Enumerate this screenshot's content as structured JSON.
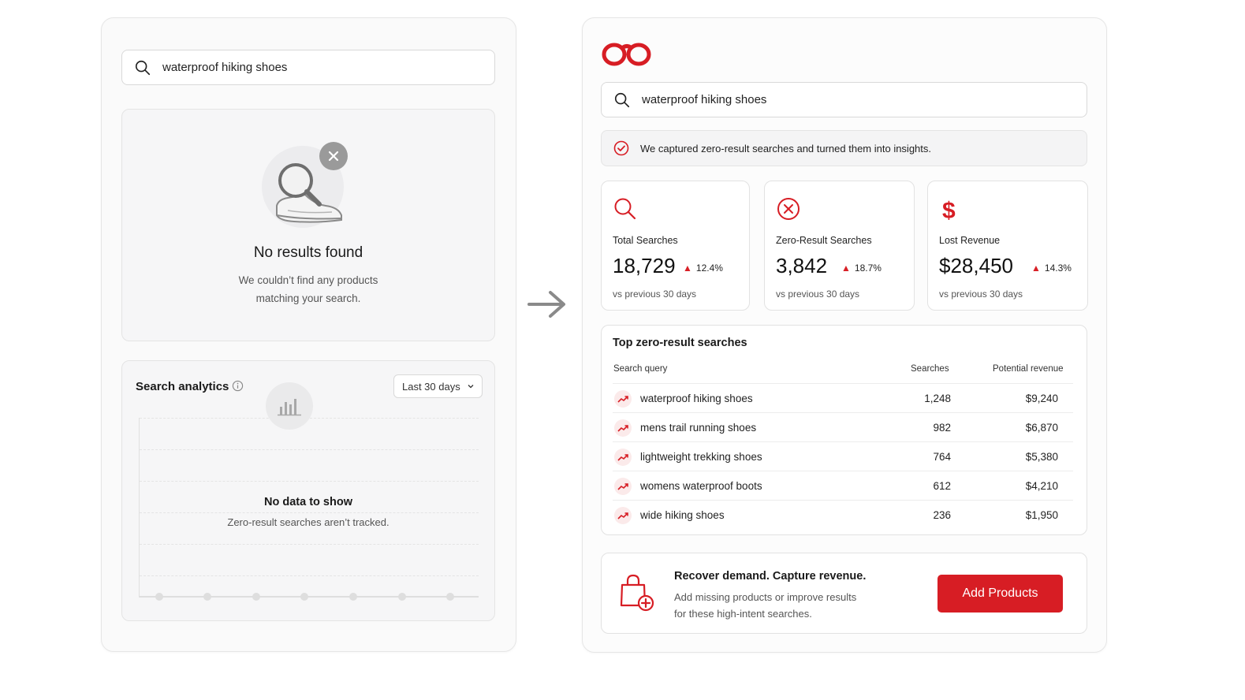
{
  "left": {
    "search": {
      "query": "waterproof hiking shoes"
    },
    "empty_state": {
      "title": "No results found",
      "desc_line1": "We couldn’t find any products",
      "desc_line2": "matching your search."
    },
    "analytics": {
      "title": "Search analytics",
      "range": "Last 30 days",
      "nodata_title": "No data to show",
      "nodata_desc": "Zero-result searches aren’t tracked."
    }
  },
  "right": {
    "search": {
      "query": "waterproof hiking shoes"
    },
    "notice": "We captured zero-result searches and turned them into insights.",
    "stats": [
      {
        "label": "Total Searches",
        "value": "18,729",
        "change": "12.4%",
        "sub": "vs previous 30 days",
        "icon": "search-icon"
      },
      {
        "label": "Zero-Result Searches",
        "value": "3,842",
        "change": "18.7%",
        "sub": "vs previous 30 days",
        "icon": "x-circle-icon"
      },
      {
        "label": "Lost Revenue",
        "value": "$28,450",
        "change": "14.3%",
        "sub": "vs previous 30 days",
        "icon": "dollar-icon"
      }
    ],
    "table": {
      "title": "Top zero-result searches",
      "headers": {
        "query": "Search query",
        "searches": "Searches",
        "revenue": "Potential revenue"
      },
      "rows": [
        {
          "query": "waterproof hiking shoes",
          "searches": "1,248",
          "revenue": "$9,240"
        },
        {
          "query": "mens trail running shoes",
          "searches": "982",
          "revenue": "$6,870"
        },
        {
          "query": "lightweight trekking shoes",
          "searches": "764",
          "revenue": "$5,380"
        },
        {
          "query": "womens waterproof boots",
          "searches": "612",
          "revenue": "$4,210"
        },
        {
          "query": "wide hiking shoes",
          "searches": "236",
          "revenue": "$1,950"
        }
      ]
    },
    "cta": {
      "title": "Recover demand. Capture revenue.",
      "desc_line1": "Add missing products or improve results",
      "desc_line2": "for these high-intent searches.",
      "button": "Add Products"
    }
  },
  "colors": {
    "accent": "#d71d24",
    "muted": "#9a9a9a"
  }
}
